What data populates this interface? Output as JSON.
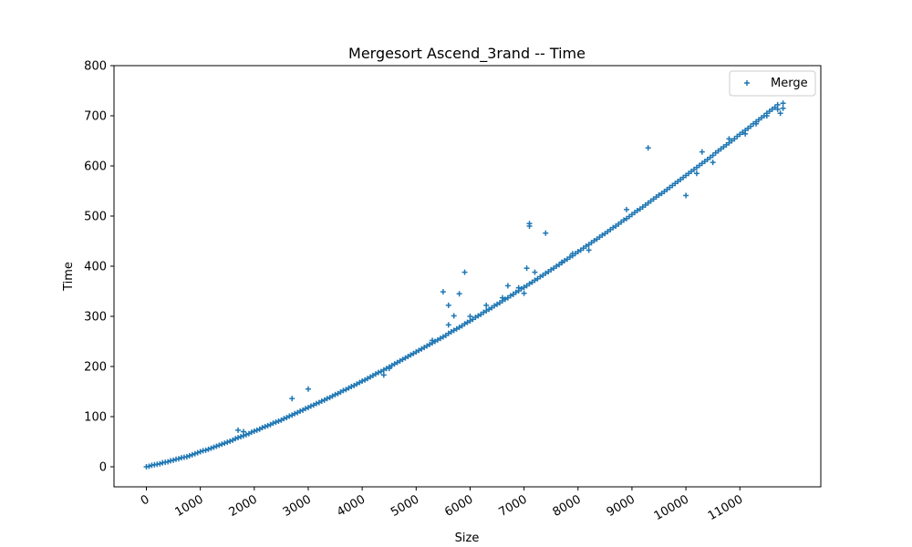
{
  "chart_data": {
    "type": "scatter",
    "title": "Mergesort Ascend_3rand -- Time",
    "xlabel": "Size",
    "ylabel": "Time",
    "xlim": [
      -600,
      12500
    ],
    "ylim": [
      -40,
      800
    ],
    "xticks": [
      0,
      1000,
      2000,
      3000,
      4000,
      5000,
      6000,
      7000,
      8000,
      9000,
      10000,
      11000
    ],
    "xtick_labels": [
      "0",
      "1000",
      "2000",
      "3000",
      "4000",
      "5000",
      "6000",
      "7000",
      "8000",
      "9000",
      "10000",
      "11000"
    ],
    "yticks": [
      0,
      100,
      200,
      300,
      400,
      500,
      600,
      700,
      800
    ],
    "ytick_labels": [
      "0",
      "100",
      "200",
      "300",
      "400",
      "500",
      "600",
      "700",
      "800"
    ],
    "legend_position": "top-right",
    "marker": "+",
    "grid": false,
    "series": [
      {
        "name": "Merge",
        "color": "#1f77b4",
        "points": [
          [
            0,
            0
          ],
          [
            100,
            3
          ],
          [
            200,
            5
          ],
          [
            300,
            8
          ],
          [
            400,
            10
          ],
          [
            500,
            13
          ],
          [
            600,
            16
          ],
          [
            700,
            19
          ],
          [
            800,
            22
          ],
          [
            900,
            26
          ],
          [
            1000,
            30
          ],
          [
            1100,
            33
          ],
          [
            1200,
            37
          ],
          [
            1300,
            41
          ],
          [
            1400,
            45
          ],
          [
            1500,
            49
          ],
          [
            1600,
            53
          ],
          [
            1700,
            58
          ],
          [
            1800,
            62
          ],
          [
            1900,
            66
          ],
          [
            2000,
            71
          ],
          [
            2100,
            75
          ],
          [
            2200,
            80
          ],
          [
            2300,
            84
          ],
          [
            2400,
            89
          ],
          [
            2500,
            93
          ],
          [
            2600,
            98
          ],
          [
            2700,
            103
          ],
          [
            2800,
            108
          ],
          [
            2900,
            113
          ],
          [
            3000,
            118
          ],
          [
            3100,
            123
          ],
          [
            3200,
            128
          ],
          [
            3300,
            133
          ],
          [
            3400,
            138
          ],
          [
            3500,
            144
          ],
          [
            3600,
            149
          ],
          [
            3700,
            154
          ],
          [
            3800,
            160
          ],
          [
            3900,
            165
          ],
          [
            4000,
            171
          ],
          [
            4100,
            176
          ],
          [
            4200,
            182
          ],
          [
            4300,
            188
          ],
          [
            4400,
            193
          ],
          [
            4500,
            199
          ],
          [
            4600,
            205
          ],
          [
            4700,
            211
          ],
          [
            4800,
            217
          ],
          [
            4900,
            223
          ],
          [
            5000,
            229
          ],
          [
            5100,
            235
          ],
          [
            5200,
            241
          ],
          [
            5300,
            247
          ],
          [
            5400,
            253
          ],
          [
            5500,
            259
          ],
          [
            5600,
            266
          ],
          [
            5700,
            272
          ],
          [
            5800,
            278
          ],
          [
            5900,
            285
          ],
          [
            6000,
            291
          ],
          [
            6100,
            298
          ],
          [
            6200,
            304
          ],
          [
            6300,
            311
          ],
          [
            6400,
            317
          ],
          [
            6500,
            324
          ],
          [
            6600,
            331
          ],
          [
            6700,
            337
          ],
          [
            6800,
            344
          ],
          [
            6900,
            351
          ],
          [
            7000,
            358
          ],
          [
            7100,
            365
          ],
          [
            7200,
            372
          ],
          [
            7300,
            379
          ],
          [
            7400,
            386
          ],
          [
            7500,
            393
          ],
          [
            7600,
            400
          ],
          [
            7700,
            407
          ],
          [
            7800,
            414
          ],
          [
            7900,
            421
          ],
          [
            8000,
            429
          ],
          [
            8100,
            436
          ],
          [
            8200,
            443
          ],
          [
            8300,
            451
          ],
          [
            8400,
            458
          ],
          [
            8500,
            465
          ],
          [
            8600,
            473
          ],
          [
            8700,
            480
          ],
          [
            8800,
            488
          ],
          [
            8900,
            495
          ],
          [
            9000,
            503
          ],
          [
            9100,
            511
          ],
          [
            9200,
            518
          ],
          [
            9300,
            526
          ],
          [
            9400,
            534
          ],
          [
            9500,
            542
          ],
          [
            9600,
            549
          ],
          [
            9700,
            557
          ],
          [
            9800,
            565
          ],
          [
            9900,
            573
          ],
          [
            10000,
            581
          ],
          [
            10100,
            589
          ],
          [
            10200,
            597
          ],
          [
            10300,
            605
          ],
          [
            10400,
            613
          ],
          [
            10500,
            621
          ],
          [
            10600,
            630
          ],
          [
            10700,
            638
          ],
          [
            10800,
            646
          ],
          [
            10900,
            654
          ],
          [
            11000,
            663
          ],
          [
            11100,
            671
          ],
          [
            11200,
            679
          ],
          [
            11300,
            688
          ],
          [
            11400,
            696
          ],
          [
            11500,
            705
          ],
          [
            11600,
            713
          ],
          [
            11700,
            722
          ],
          [
            11800,
            715
          ],
          [
            50,
            1
          ],
          [
            150,
            4
          ],
          [
            250,
            6
          ],
          [
            350,
            9
          ],
          [
            450,
            12
          ],
          [
            550,
            15
          ],
          [
            650,
            18
          ],
          [
            750,
            20
          ],
          [
            850,
            24
          ],
          [
            950,
            28
          ],
          [
            1050,
            32
          ],
          [
            1150,
            35
          ],
          [
            1250,
            39
          ],
          [
            1350,
            43
          ],
          [
            1450,
            47
          ],
          [
            1550,
            51
          ],
          [
            1650,
            56
          ],
          [
            1750,
            60
          ],
          [
            1850,
            64
          ],
          [
            1950,
            69
          ],
          [
            2050,
            73
          ],
          [
            2150,
            78
          ],
          [
            2250,
            82
          ],
          [
            2350,
            87
          ],
          [
            2450,
            91
          ],
          [
            2550,
            96
          ],
          [
            2650,
            101
          ],
          [
            2750,
            106
          ],
          [
            2850,
            111
          ],
          [
            2950,
            116
          ],
          [
            3050,
            121
          ],
          [
            3150,
            126
          ],
          [
            3250,
            131
          ],
          [
            3350,
            136
          ],
          [
            3450,
            141
          ],
          [
            3550,
            146
          ],
          [
            3650,
            152
          ],
          [
            3750,
            157
          ],
          [
            3850,
            162
          ],
          [
            3950,
            168
          ],
          [
            4050,
            173
          ],
          [
            4150,
            179
          ],
          [
            4250,
            185
          ],
          [
            4350,
            190
          ],
          [
            4450,
            196
          ],
          [
            4550,
            202
          ],
          [
            4650,
            208
          ],
          [
            4750,
            214
          ],
          [
            4850,
            220
          ],
          [
            4950,
            226
          ],
          [
            5050,
            232
          ],
          [
            5150,
            238
          ],
          [
            5250,
            244
          ],
          [
            5350,
            250
          ],
          [
            5450,
            256
          ],
          [
            5550,
            262
          ],
          [
            5650,
            269
          ],
          [
            5750,
            275
          ],
          [
            5850,
            281
          ],
          [
            5950,
            288
          ],
          [
            6050,
            294
          ],
          [
            6150,
            301
          ],
          [
            6250,
            308
          ],
          [
            6350,
            314
          ],
          [
            6450,
            321
          ],
          [
            6550,
            327
          ],
          [
            6650,
            334
          ],
          [
            6750,
            341
          ],
          [
            6850,
            348
          ],
          [
            6950,
            355
          ],
          [
            7050,
            361
          ],
          [
            7150,
            368
          ],
          [
            7250,
            375
          ],
          [
            7350,
            382
          ],
          [
            7450,
            389
          ],
          [
            7550,
            396
          ],
          [
            7650,
            403
          ],
          [
            7750,
            411
          ],
          [
            7850,
            418
          ],
          [
            7950,
            425
          ],
          [
            8050,
            432
          ],
          [
            8150,
            440
          ],
          [
            8250,
            447
          ],
          [
            8350,
            454
          ],
          [
            8450,
            462
          ],
          [
            8550,
            469
          ],
          [
            8650,
            477
          ],
          [
            8750,
            484
          ],
          [
            8850,
            492
          ],
          [
            8950,
            499
          ],
          [
            9050,
            507
          ],
          [
            9150,
            514
          ],
          [
            9250,
            522
          ],
          [
            9350,
            530
          ],
          [
            9450,
            538
          ],
          [
            9550,
            545
          ],
          [
            9650,
            553
          ],
          [
            9750,
            561
          ],
          [
            9850,
            569
          ],
          [
            9950,
            577
          ],
          [
            10050,
            585
          ],
          [
            10150,
            593
          ],
          [
            10250,
            601
          ],
          [
            10350,
            609
          ],
          [
            10450,
            617
          ],
          [
            10550,
            626
          ],
          [
            10650,
            634
          ],
          [
            10750,
            642
          ],
          [
            10850,
            650
          ],
          [
            10950,
            659
          ],
          [
            11050,
            667
          ],
          [
            11150,
            675
          ],
          [
            11250,
            684
          ],
          [
            11350,
            692
          ],
          [
            11450,
            700
          ],
          [
            11550,
            709
          ],
          [
            11650,
            717
          ],
          [
            11750,
            705
          ],
          [
            11800,
            725
          ],
          [
            1700,
            73
          ],
          [
            1800,
            70
          ],
          [
            2700,
            136
          ],
          [
            3000,
            155
          ],
          [
            4400,
            183
          ],
          [
            4500,
            196
          ],
          [
            5300,
            252
          ],
          [
            5500,
            349
          ],
          [
            5600,
            322
          ],
          [
            5600,
            283
          ],
          [
            5700,
            301
          ],
          [
            5800,
            345
          ],
          [
            5900,
            388
          ],
          [
            6000,
            300
          ],
          [
            6300,
            322
          ],
          [
            6600,
            337
          ],
          [
            6700,
            361
          ],
          [
            6800,
            344
          ],
          [
            6900,
            357
          ],
          [
            7000,
            346
          ],
          [
            7050,
            396
          ],
          [
            7100,
            485
          ],
          [
            7100,
            480
          ],
          [
            7200,
            388
          ],
          [
            7400,
            466
          ],
          [
            7700,
            408
          ],
          [
            7900,
            425
          ],
          [
            8200,
            432
          ],
          [
            8900,
            513
          ],
          [
            9300,
            636
          ],
          [
            10000,
            541
          ],
          [
            10200,
            585
          ],
          [
            10300,
            628
          ],
          [
            10500,
            607
          ],
          [
            10800,
            654
          ],
          [
            11100,
            664
          ],
          [
            11300,
            684
          ],
          [
            11500,
            700
          ],
          [
            11700,
            713
          ]
        ]
      }
    ]
  }
}
